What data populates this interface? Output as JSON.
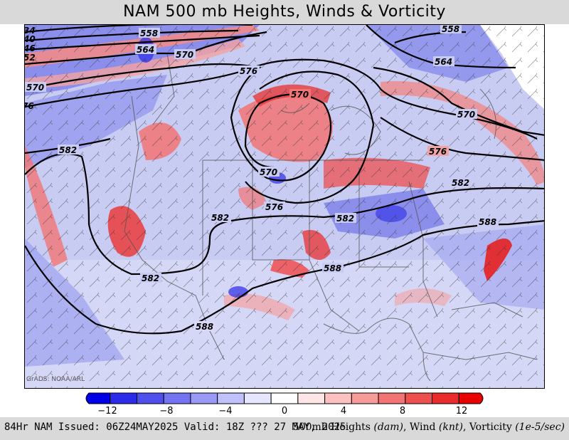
{
  "title": "NAM 500 mb Heights, Winds & Vorticity",
  "credit": "GrADS: NOAA/ARL",
  "colorbar": {
    "labels": [
      "−12",
      "−8",
      "−4",
      "0",
      "4",
      "8",
      "12"
    ],
    "colors": [
      "#0000e6",
      "#2b2bea",
      "#4f4fee",
      "#7474f2",
      "#9a9af6",
      "#c0c0fa",
      "#e6e6fe",
      "#ffffff",
      "#ffe6e6",
      "#fcc0c0",
      "#f79a9a",
      "#f27474",
      "#ee4f4f",
      "#ea2b2b",
      "#e60000"
    ]
  },
  "contour_labels": [
    "558",
    "564",
    "570",
    "576",
    "570",
    "570",
    "582",
    "576",
    "582",
    "582",
    "588",
    "582",
    "588",
    "588",
    "570",
    "564",
    "558",
    "576",
    "582",
    "588"
  ],
  "edge_labels": [
    "34",
    "40",
    "46",
    "52",
    "570",
    "76"
  ],
  "footer": {
    "left": "84Hr NAM Issued: 06Z24MAY2025 Valid: 18Z ??? 27 MAY, 2025",
    "right_prefix": "500mb Heights ",
    "right_unit1": "(dam)",
    "right_mid1": ", Wind ",
    "right_unit2": "(knt)",
    "right_mid2": ", Vorticity ",
    "right_unit3": "(1e-5/sec)"
  }
}
